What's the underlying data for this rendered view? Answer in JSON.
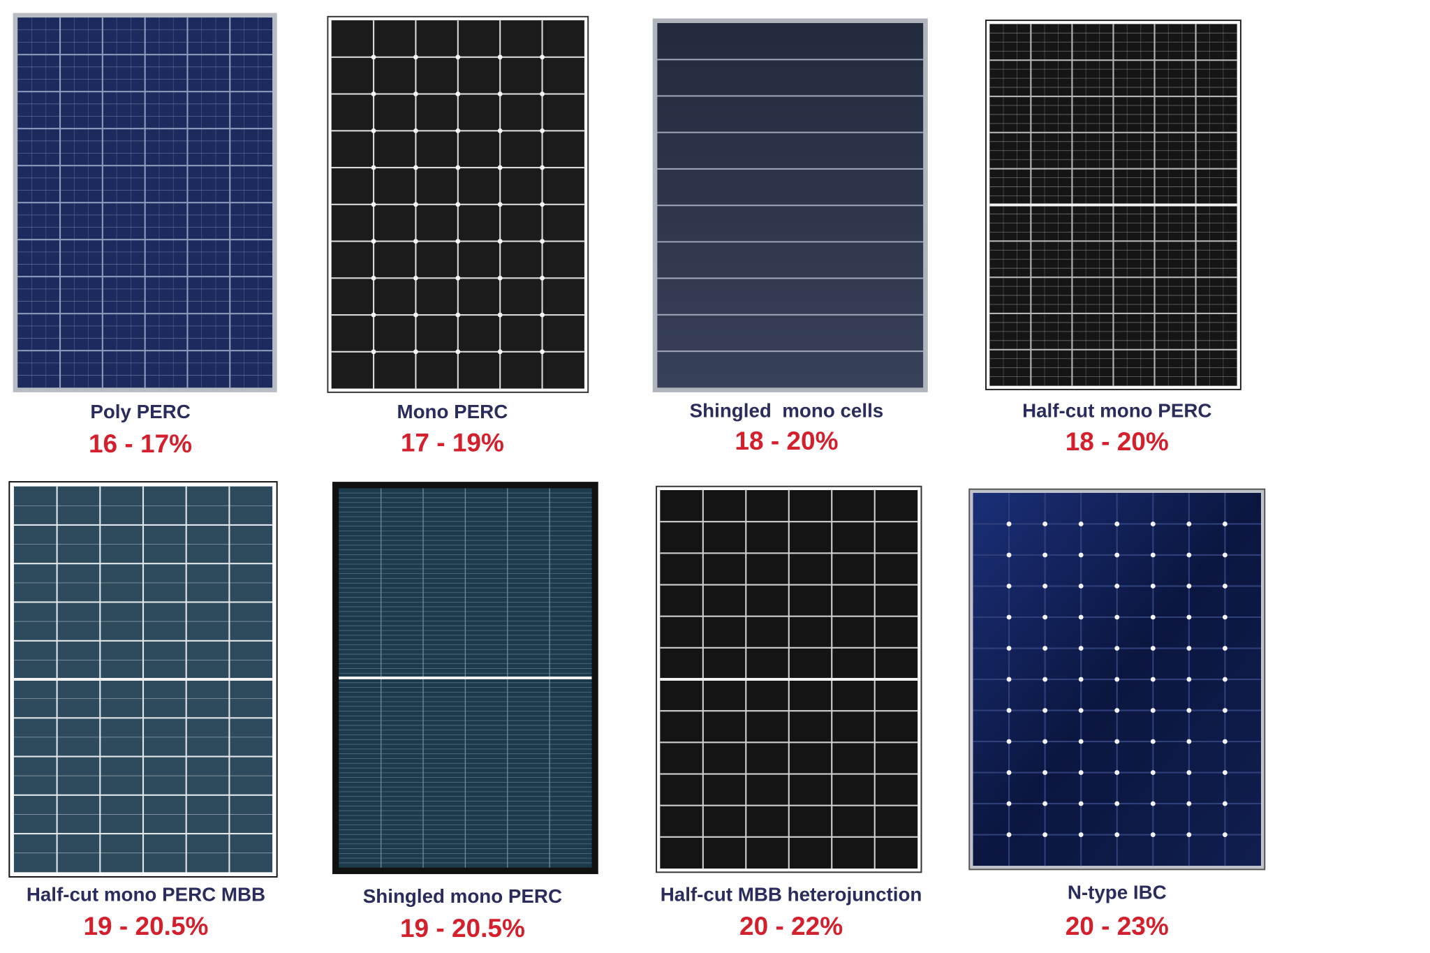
{
  "panels": [
    {
      "label": "Poly PERC",
      "efficiency": "16 - 17%"
    },
    {
      "label": "Mono PERC",
      "efficiency": "17 - 19%"
    },
    {
      "label": "Shingled  mono cells",
      "efficiency": "18 - 20%"
    },
    {
      "label": "Half-cut mono PERC",
      "efficiency": "18 - 20%"
    },
    {
      "label": "Half-cut mono PERC MBB",
      "efficiency": "19 - 20.5%"
    },
    {
      "label": "Shingled mono PERC",
      "efficiency": "19 - 20.5%"
    },
    {
      "label": "Half-cut MBB heterojunction",
      "efficiency": "20 - 22%"
    },
    {
      "label": "N-type IBC",
      "efficiency": "20 - 23%"
    }
  ]
}
